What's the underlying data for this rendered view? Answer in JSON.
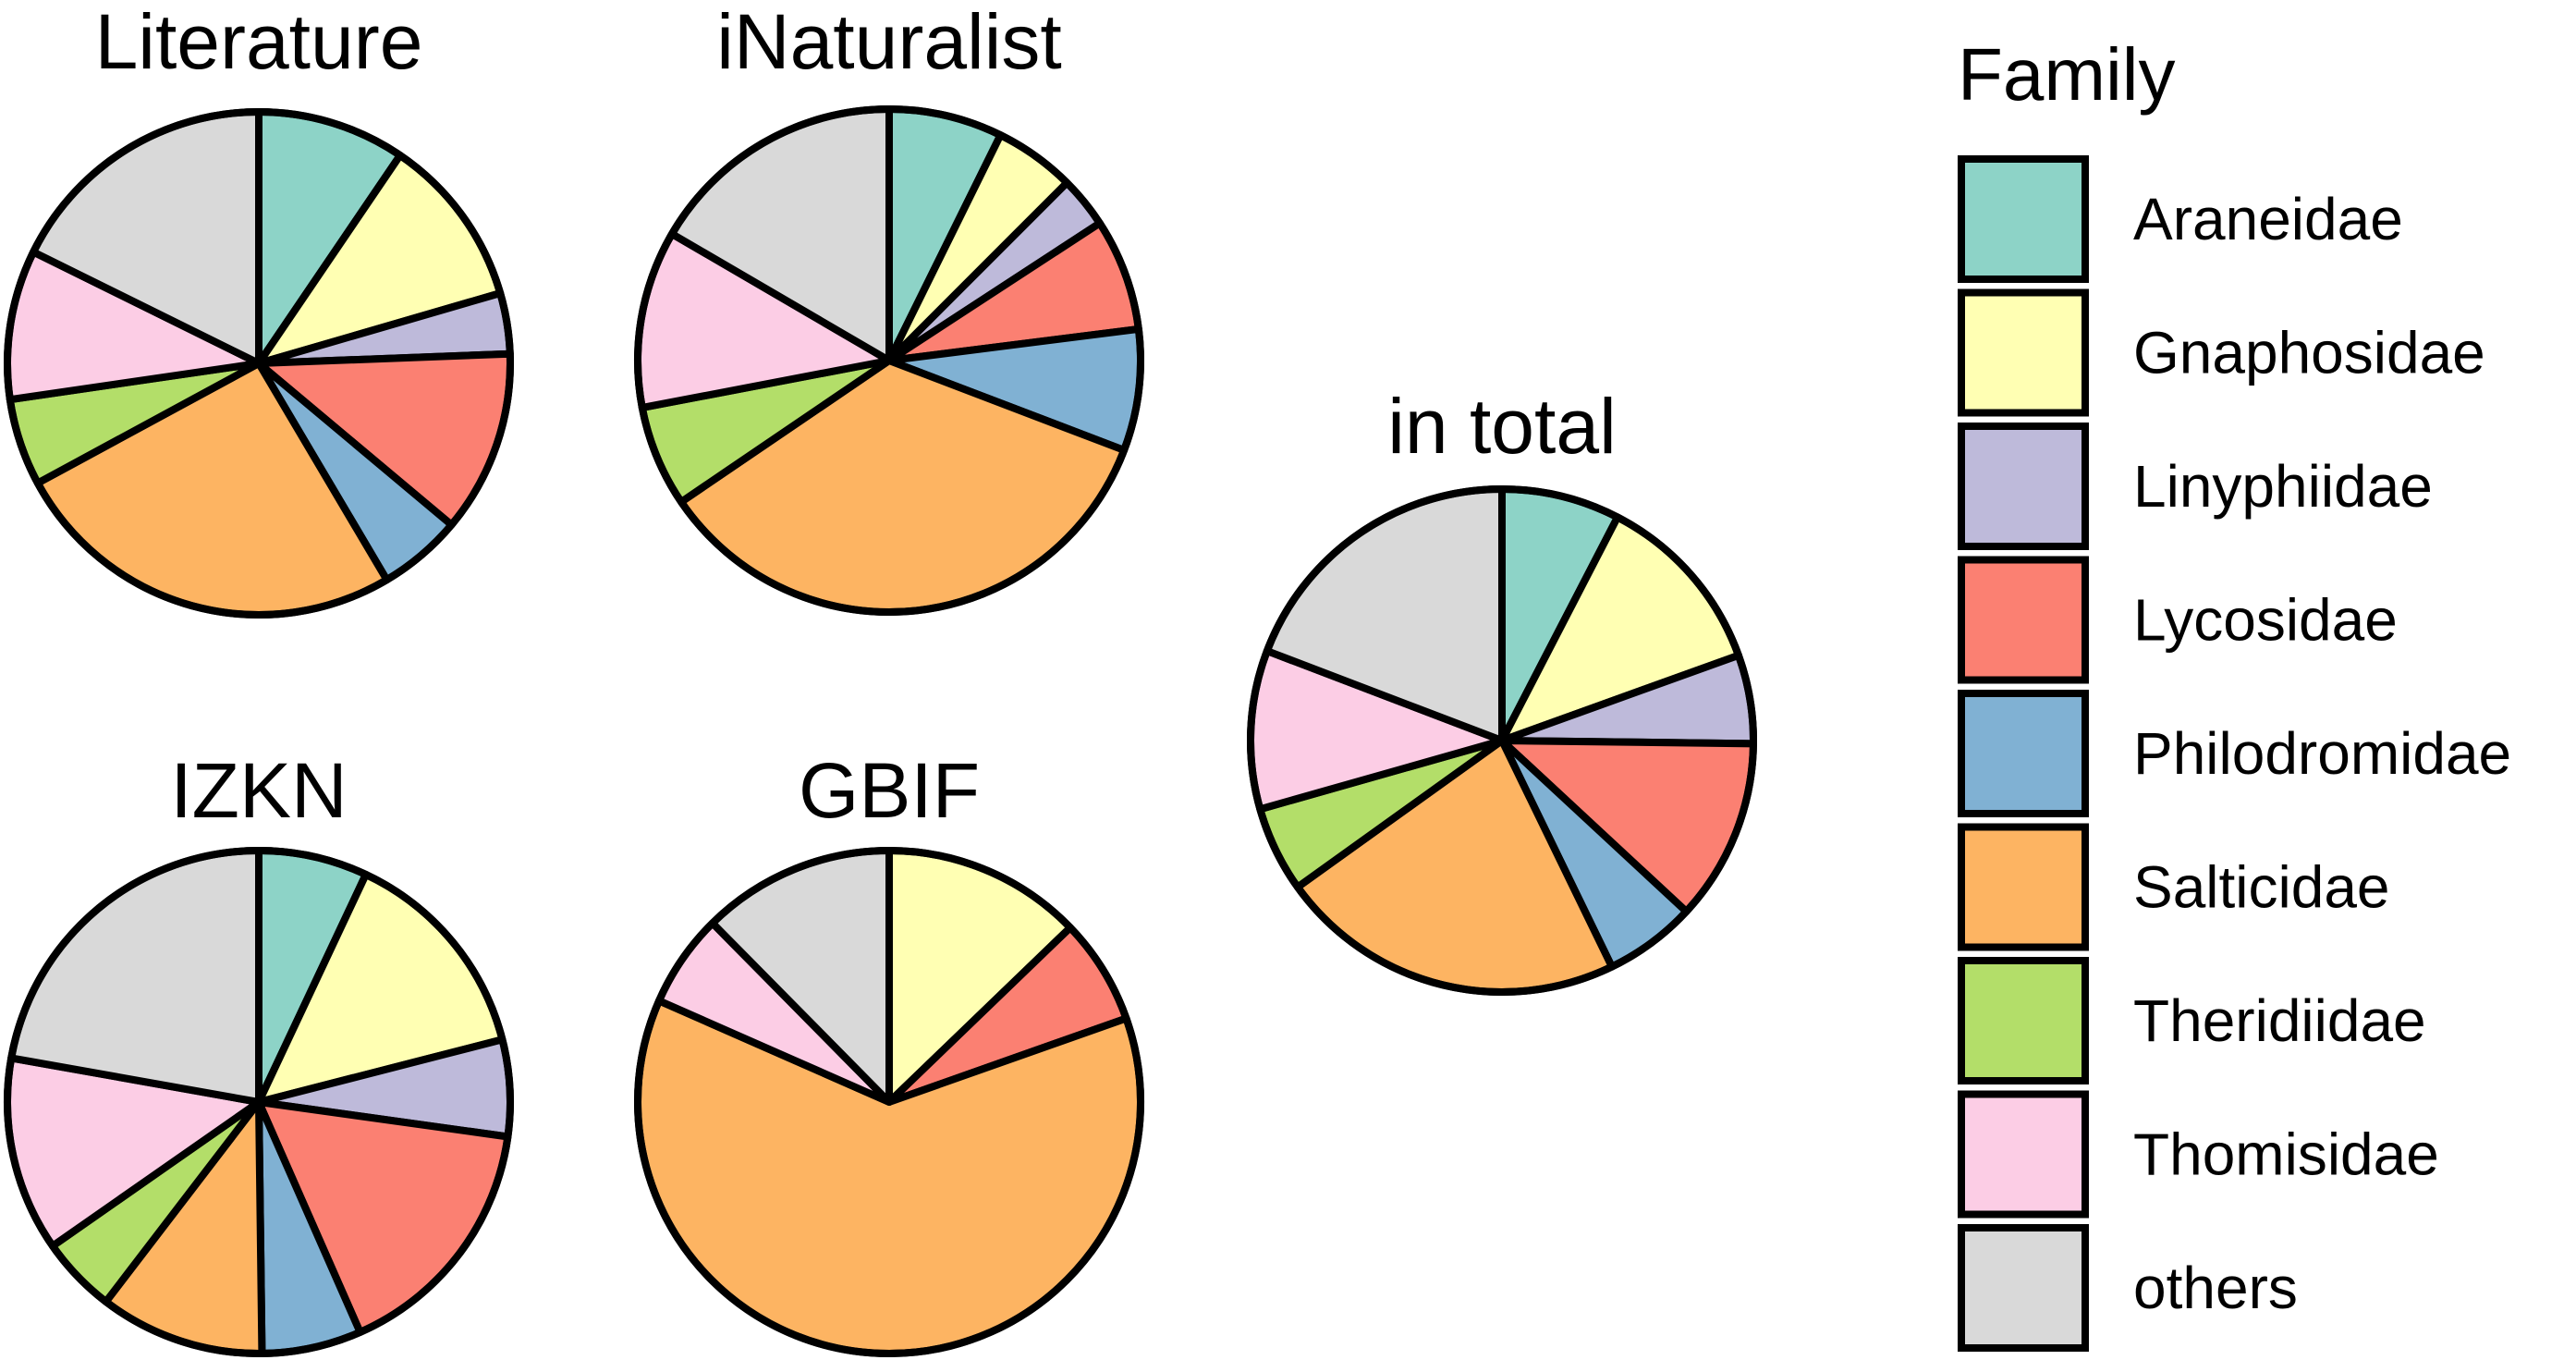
{
  "chart_data": {
    "type": "pie",
    "legend": {
      "title": "Family",
      "placement": "right",
      "entries": [
        {
          "name": "Araneidae",
          "color": "#8DD3C7"
        },
        {
          "name": "Gnaphosidae",
          "color": "#FFFFB3"
        },
        {
          "name": "Linyphiidae",
          "color": "#BEBADA"
        },
        {
          "name": "Lycosidae",
          "color": "#FB8072"
        },
        {
          "name": "Philodromidae",
          "color": "#80B1D3"
        },
        {
          "name": "Salticidae",
          "color": "#FDB462"
        },
        {
          "name": "Theridiidae",
          "color": "#B3DE69"
        },
        {
          "name": "Thomisidae",
          "color": "#FCCDE5"
        },
        {
          "name": "others",
          "color": "#D9D9D9"
        }
      ]
    },
    "pies": [
      {
        "title": "Literature",
        "slices": [
          {
            "name": "Araneidae",
            "value": 9.5
          },
          {
            "name": "Gnaphosidae",
            "value": 11.0
          },
          {
            "name": "Linyphiidae",
            "value": 3.9
          },
          {
            "name": "Lycosidae",
            "value": 11.7
          },
          {
            "name": "Philodromidae",
            "value": 5.4
          },
          {
            "name": "Salticidae",
            "value": 25.6
          },
          {
            "name": "Theridiidae",
            "value": 5.6
          },
          {
            "name": "Thomisidae",
            "value": 9.6
          },
          {
            "name": "others",
            "value": 17.7
          }
        ]
      },
      {
        "title": "iNaturalist",
        "slices": [
          {
            "name": "Araneidae",
            "value": 7.3
          },
          {
            "name": "Gnaphosidae",
            "value": 5.2
          },
          {
            "name": "Linyphiidae",
            "value": 3.3
          },
          {
            "name": "Lycosidae",
            "value": 7.2
          },
          {
            "name": "Philodromidae",
            "value": 7.8
          },
          {
            "name": "Salticidae",
            "value": 34.7
          },
          {
            "name": "Theridiidae",
            "value": 6.5
          },
          {
            "name": "Thomisidae",
            "value": 11.4
          },
          {
            "name": "others",
            "value": 16.6
          }
        ]
      },
      {
        "title": "IZKN",
        "slices": [
          {
            "name": "Araneidae",
            "value": 7.0
          },
          {
            "name": "Gnaphosidae",
            "value": 14.0
          },
          {
            "name": "Linyphiidae",
            "value": 6.2
          },
          {
            "name": "Lycosidae",
            "value": 16.2
          },
          {
            "name": "Philodromidae",
            "value": 6.4
          },
          {
            "name": "Salticidae",
            "value": 10.6
          },
          {
            "name": "Theridiidae",
            "value": 4.9
          },
          {
            "name": "Thomisidae",
            "value": 12.5
          },
          {
            "name": "others",
            "value": 22.2
          }
        ]
      },
      {
        "title": "GBIF",
        "slices": [
          {
            "name": "Gnaphosidae",
            "value": 12.8
          },
          {
            "name": "Lycosidae",
            "value": 6.8
          },
          {
            "name": "Salticidae",
            "value": 62.0
          },
          {
            "name": "Thomisidae",
            "value": 6.0
          },
          {
            "name": "others",
            "value": 12.4
          }
        ]
      },
      {
        "title": "in total",
        "slices": [
          {
            "name": "Araneidae",
            "value": 7.6
          },
          {
            "name": "Gnaphosidae",
            "value": 11.9
          },
          {
            "name": "Linyphiidae",
            "value": 5.7
          },
          {
            "name": "Lycosidae",
            "value": 11.7
          },
          {
            "name": "Philodromidae",
            "value": 5.9
          },
          {
            "name": "Salticidae",
            "value": 22.3
          },
          {
            "name": "Theridiidae",
            "value": 5.5
          },
          {
            "name": "Thomisidae",
            "value": 10.2
          },
          {
            "name": "others",
            "value": 19.2
          }
        ]
      }
    ]
  }
}
